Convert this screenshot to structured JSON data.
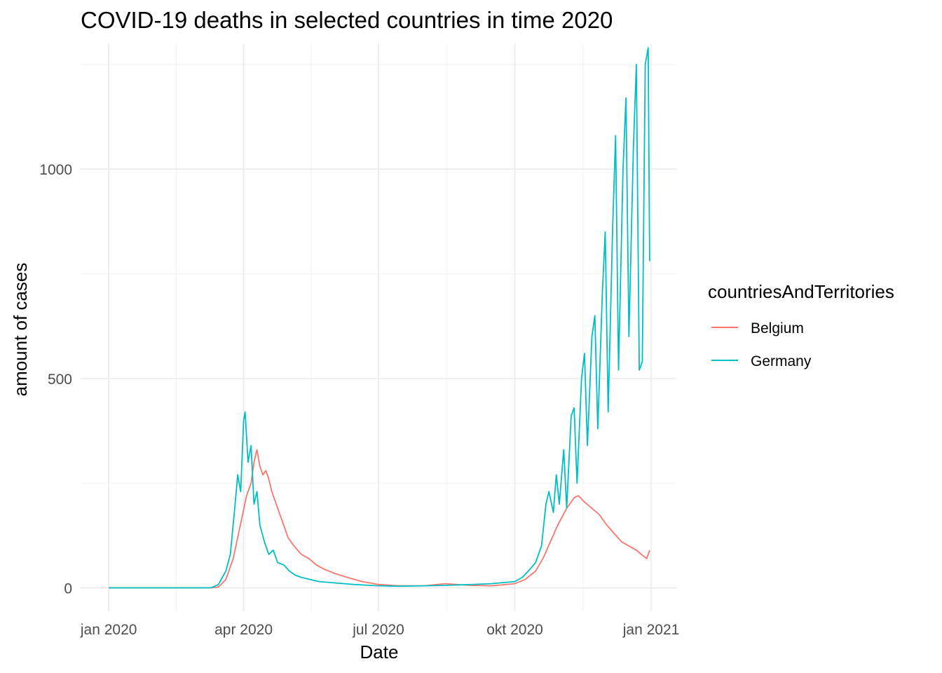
{
  "chart_data": {
    "type": "line",
    "title": "COVID-19 deaths in selected countries in time 2020",
    "xlabel": "Date",
    "ylabel": "amount of cases",
    "x_axis": {
      "range": [
        "2019-12-13",
        "2021-01-18"
      ],
      "ticks": [
        {
          "date": "2020-01-01",
          "label": "jan 2020"
        },
        {
          "date": "2020-04-01",
          "label": "apr 2020"
        },
        {
          "date": "2020-07-01",
          "label": "jul 2020"
        },
        {
          "date": "2020-10-01",
          "label": "okt 2020"
        },
        {
          "date": "2021-01-01",
          "label": "jan 2021"
        }
      ]
    },
    "y_axis": {
      "range": [
        -56,
        1300
      ],
      "ticks": [
        {
          "value": 0,
          "label": "0"
        },
        {
          "value": 500,
          "label": "500"
        },
        {
          "value": 1000,
          "label": "1000"
        }
      ]
    },
    "grid": true,
    "legend": {
      "title": "countriesAndTerritories",
      "position": "right"
    },
    "series": [
      {
        "name": "Belgium",
        "color": "#f8766d",
        "points": [
          [
            "2020-01-01",
            0
          ],
          [
            "2020-03-10",
            0
          ],
          [
            "2020-03-15",
            2
          ],
          [
            "2020-03-20",
            20
          ],
          [
            "2020-03-25",
            70
          ],
          [
            "2020-03-28",
            120
          ],
          [
            "2020-03-31",
            170
          ],
          [
            "2020-04-03",
            220
          ],
          [
            "2020-04-06",
            250
          ],
          [
            "2020-04-08",
            300
          ],
          [
            "2020-04-10",
            330
          ],
          [
            "2020-04-12",
            290
          ],
          [
            "2020-04-14",
            270
          ],
          [
            "2020-04-16",
            280
          ],
          [
            "2020-04-18",
            260
          ],
          [
            "2020-04-20",
            230
          ],
          [
            "2020-04-22",
            210
          ],
          [
            "2020-04-25",
            180
          ],
          [
            "2020-04-28",
            150
          ],
          [
            "2020-05-01",
            120
          ],
          [
            "2020-05-05",
            100
          ],
          [
            "2020-05-10",
            80
          ],
          [
            "2020-05-15",
            70
          ],
          [
            "2020-05-20",
            55
          ],
          [
            "2020-05-25",
            45
          ],
          [
            "2020-06-01",
            35
          ],
          [
            "2020-06-10",
            25
          ],
          [
            "2020-06-20",
            15
          ],
          [
            "2020-07-01",
            8
          ],
          [
            "2020-07-15",
            5
          ],
          [
            "2020-08-01",
            5
          ],
          [
            "2020-08-15",
            10
          ],
          [
            "2020-09-01",
            6
          ],
          [
            "2020-09-15",
            5
          ],
          [
            "2020-10-01",
            10
          ],
          [
            "2020-10-08",
            20
          ],
          [
            "2020-10-15",
            40
          ],
          [
            "2020-10-20",
            70
          ],
          [
            "2020-10-25",
            110
          ],
          [
            "2020-10-30",
            150
          ],
          [
            "2020-11-05",
            190
          ],
          [
            "2020-11-10",
            215
          ],
          [
            "2020-11-13",
            220
          ],
          [
            "2020-11-17",
            205
          ],
          [
            "2020-11-22",
            190
          ],
          [
            "2020-11-27",
            175
          ],
          [
            "2020-12-02",
            150
          ],
          [
            "2020-12-07",
            130
          ],
          [
            "2020-12-12",
            110
          ],
          [
            "2020-12-17",
            100
          ],
          [
            "2020-12-22",
            90
          ],
          [
            "2020-12-27",
            75
          ],
          [
            "2020-12-29",
            70
          ],
          [
            "2020-12-31",
            90
          ]
        ]
      },
      {
        "name": "Germany",
        "color": "#00bfc4",
        "points": [
          [
            "2020-01-01",
            0
          ],
          [
            "2020-03-10",
            0
          ],
          [
            "2020-03-15",
            8
          ],
          [
            "2020-03-20",
            40
          ],
          [
            "2020-03-23",
            80
          ],
          [
            "2020-03-26",
            190
          ],
          [
            "2020-03-28",
            270
          ],
          [
            "2020-03-30",
            230
          ],
          [
            "2020-04-01",
            400
          ],
          [
            "2020-04-02",
            420
          ],
          [
            "2020-04-04",
            300
          ],
          [
            "2020-04-06",
            340
          ],
          [
            "2020-04-08",
            200
          ],
          [
            "2020-04-10",
            230
          ],
          [
            "2020-04-12",
            150
          ],
          [
            "2020-04-15",
            110
          ],
          [
            "2020-04-18",
            80
          ],
          [
            "2020-04-21",
            90
          ],
          [
            "2020-04-24",
            60
          ],
          [
            "2020-04-28",
            55
          ],
          [
            "2020-05-02",
            40
          ],
          [
            "2020-05-06",
            30
          ],
          [
            "2020-05-10",
            25
          ],
          [
            "2020-05-16",
            20
          ],
          [
            "2020-05-22",
            15
          ],
          [
            "2020-06-01",
            12
          ],
          [
            "2020-06-15",
            8
          ],
          [
            "2020-07-01",
            5
          ],
          [
            "2020-07-15",
            4
          ],
          [
            "2020-08-01",
            5
          ],
          [
            "2020-08-15",
            6
          ],
          [
            "2020-09-01",
            8
          ],
          [
            "2020-09-15",
            10
          ],
          [
            "2020-10-01",
            15
          ],
          [
            "2020-10-06",
            25
          ],
          [
            "2020-10-10",
            40
          ],
          [
            "2020-10-15",
            60
          ],
          [
            "2020-10-19",
            100
          ],
          [
            "2020-10-22",
            200
          ],
          [
            "2020-10-24",
            230
          ],
          [
            "2020-10-27",
            180
          ],
          [
            "2020-10-29",
            270
          ],
          [
            "2020-10-31",
            200
          ],
          [
            "2020-11-03",
            330
          ],
          [
            "2020-11-05",
            190
          ],
          [
            "2020-11-08",
            410
          ],
          [
            "2020-11-10",
            430
          ],
          [
            "2020-11-12",
            250
          ],
          [
            "2020-11-15",
            500
          ],
          [
            "2020-11-17",
            560
          ],
          [
            "2020-11-19",
            340
          ],
          [
            "2020-11-22",
            600
          ],
          [
            "2020-11-24",
            650
          ],
          [
            "2020-11-26",
            380
          ],
          [
            "2020-11-29",
            700
          ],
          [
            "2020-12-01",
            850
          ],
          [
            "2020-12-03",
            420
          ],
          [
            "2020-12-06",
            860
          ],
          [
            "2020-12-08",
            1080
          ],
          [
            "2020-12-10",
            520
          ],
          [
            "2020-12-13",
            1000
          ],
          [
            "2020-12-15",
            1170
          ],
          [
            "2020-12-17",
            600
          ],
          [
            "2020-12-20",
            1050
          ],
          [
            "2020-12-22",
            1250
          ],
          [
            "2020-12-24",
            520
          ],
          [
            "2020-12-26",
            540
          ],
          [
            "2020-12-28",
            1250
          ],
          [
            "2020-12-30",
            1290
          ],
          [
            "2020-12-31",
            780
          ]
        ]
      }
    ]
  }
}
